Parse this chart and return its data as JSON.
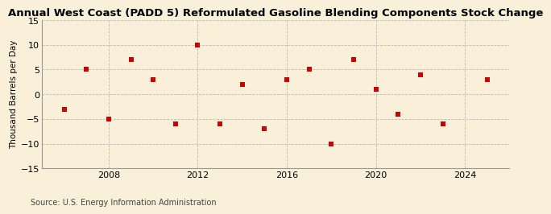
{
  "title": "Annual West Coast (PADD 5) Reformulated Gasoline Blending Components Stock Change",
  "ylabel": "Thousand Barrels per Day",
  "source": "Source: U.S. Energy Information Administration",
  "background_color": "#faefd9",
  "plot_bg_color": "#faefd9",
  "marker_color": "#cc0000",
  "marker": "s",
  "marker_size": 4,
  "xlim": [
    2005.0,
    2026.0
  ],
  "ylim": [
    -15,
    15
  ],
  "yticks": [
    -15,
    -10,
    -5,
    0,
    5,
    10,
    15
  ],
  "xticks": [
    2008,
    2012,
    2016,
    2020,
    2024
  ],
  "grid_color": "#bbbbbb",
  "years": [
    2006,
    2007,
    2008,
    2009,
    2010,
    2011,
    2012,
    2013,
    2014,
    2015,
    2016,
    2017,
    2018,
    2019,
    2020,
    2021,
    2022,
    2023,
    2025
  ],
  "values": [
    -3,
    5,
    -5,
    7,
    3,
    -6,
    10,
    -6,
    2,
    -7,
    3,
    5,
    -10,
    7,
    1,
    -4,
    4,
    -6,
    3
  ],
  "title_fontsize": 9.5,
  "ylabel_fontsize": 7.5,
  "tick_fontsize": 8,
  "source_fontsize": 7
}
